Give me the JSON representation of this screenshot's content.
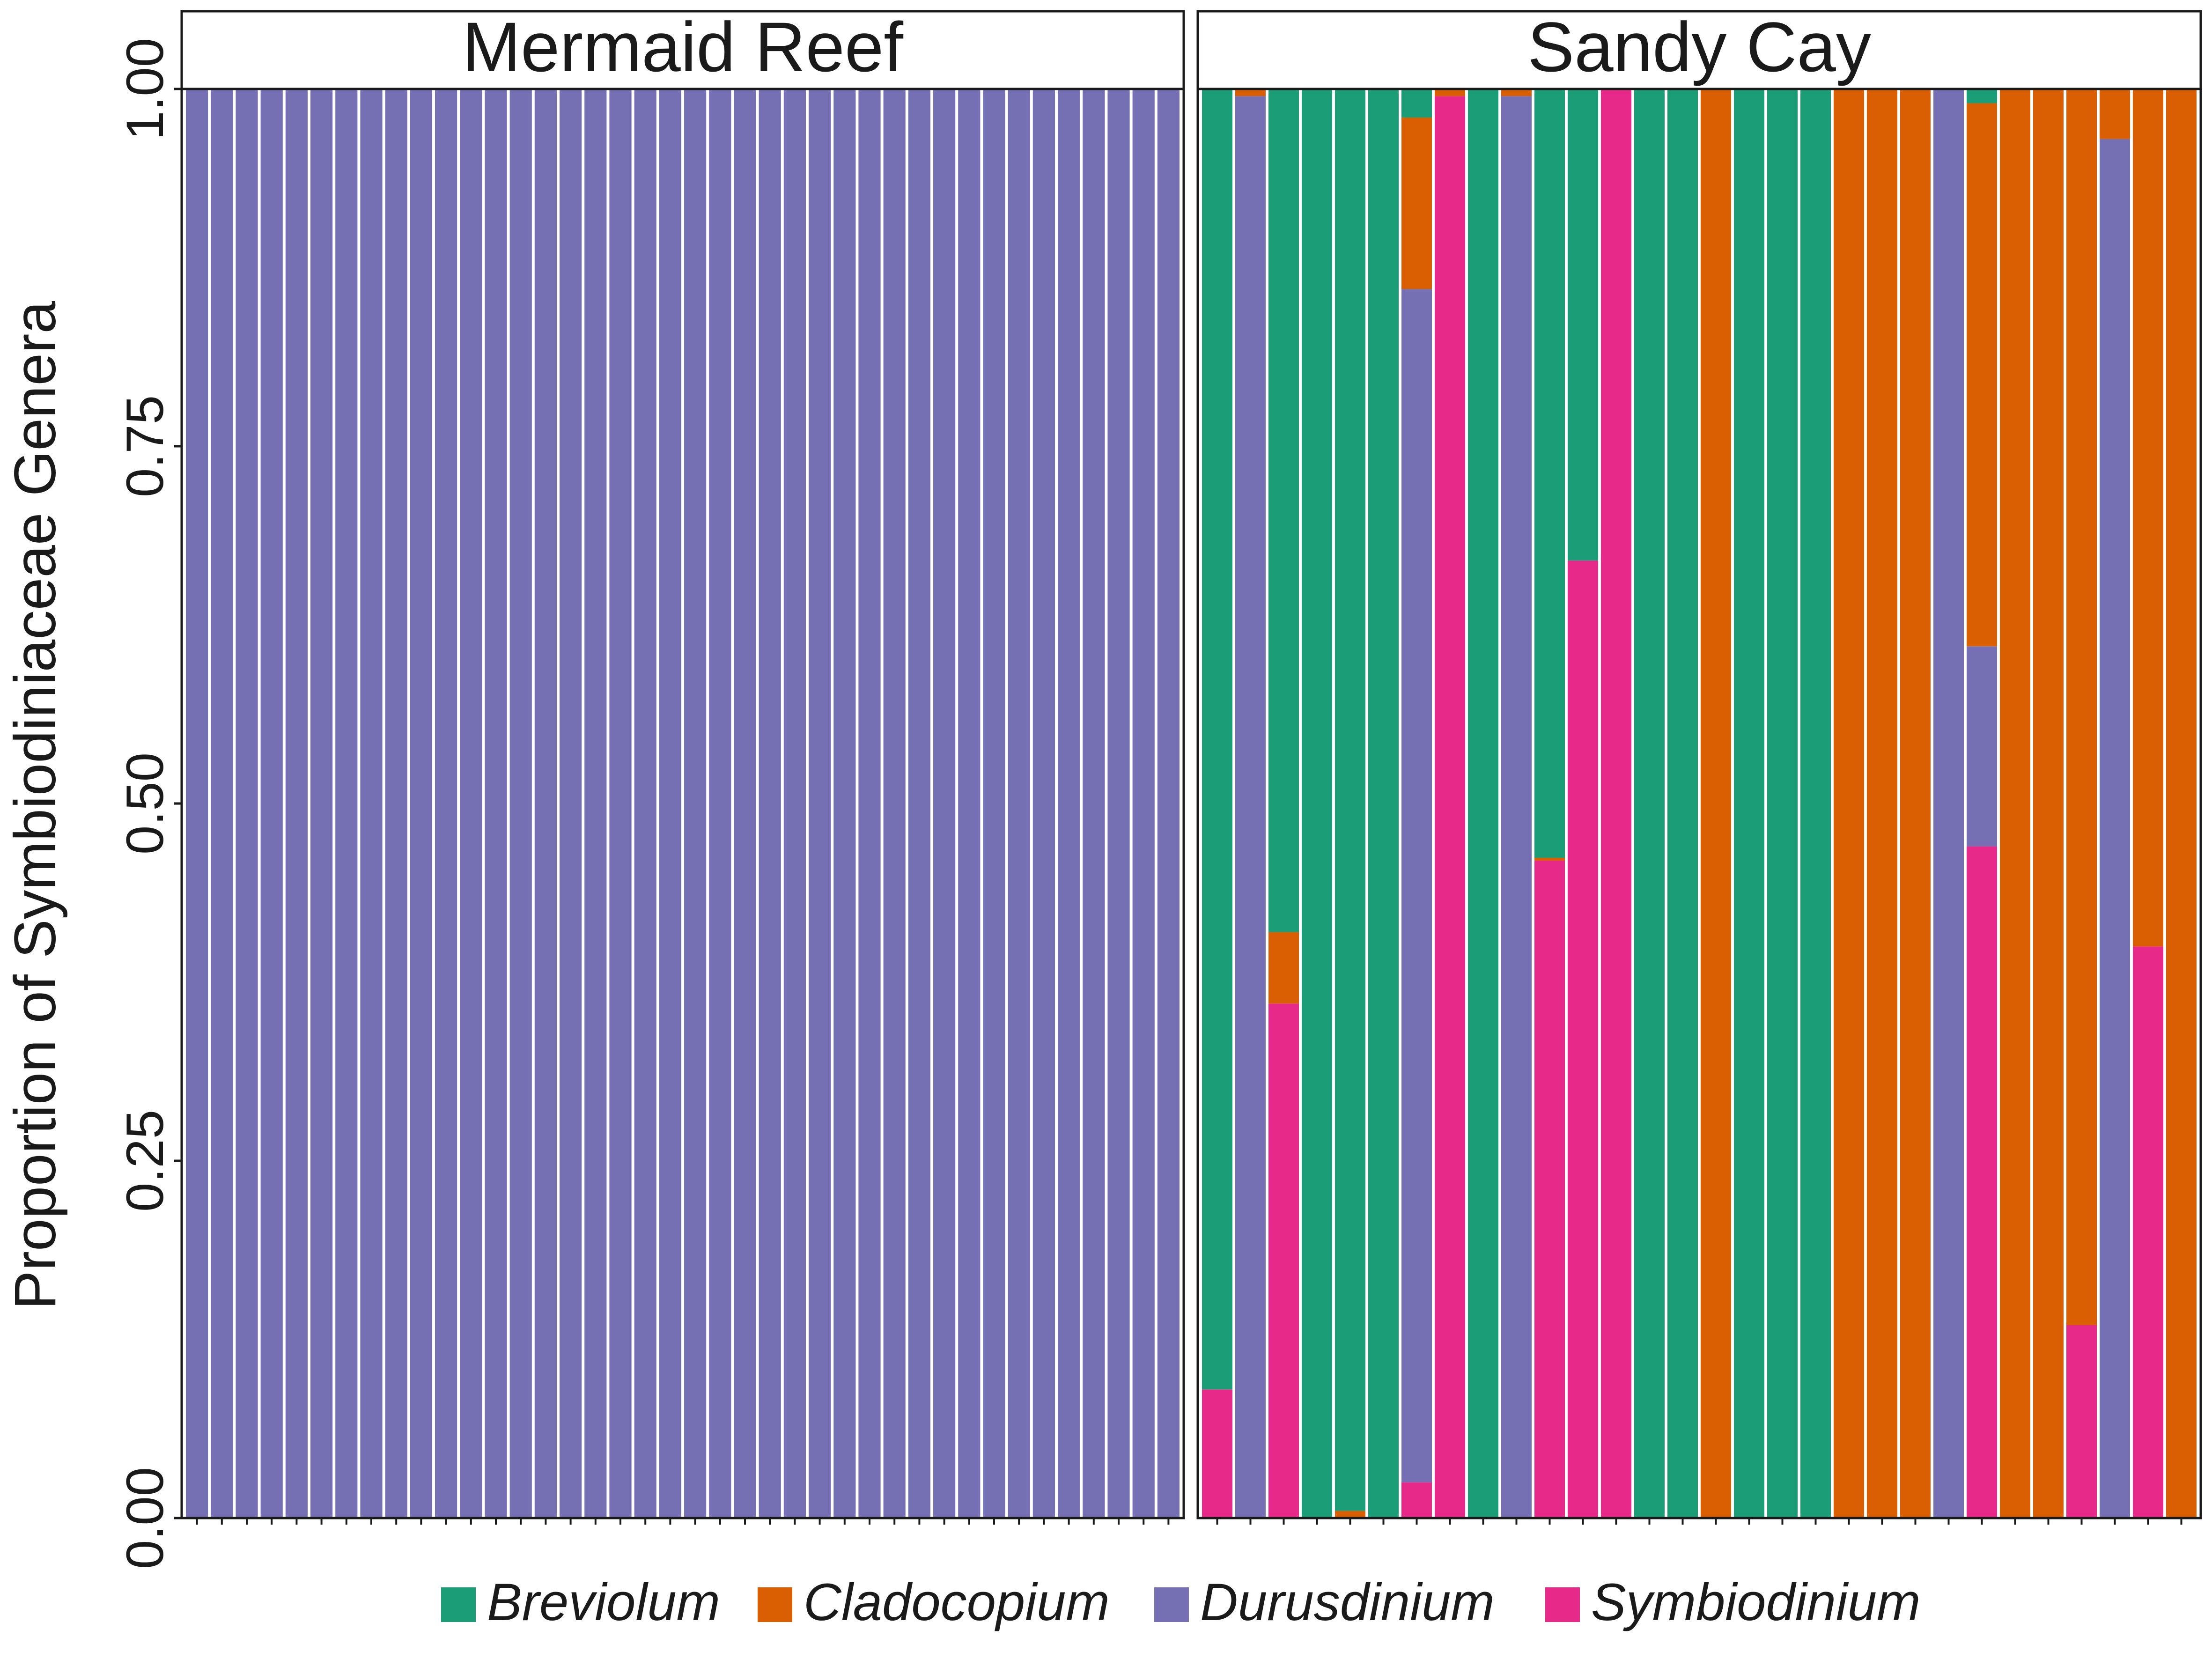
{
  "chart_data": {
    "type": "bar",
    "stacked": true,
    "orientation": "vertical",
    "ylabel": "Proportion of Symbiodiniaceae Genera",
    "xlabel": "",
    "ylim": [
      0,
      1
    ],
    "yticks": [
      "0.00",
      "0.25",
      "0.50",
      "0.75",
      "1.00"
    ],
    "legend": {
      "placement": "bottom",
      "entries": [
        {
          "name": "Breviolum",
          "color": "#1B9E77"
        },
        {
          "name": "Cladocopium",
          "color": "#D95F02"
        },
        {
          "name": "Durusdinium",
          "color": "#7570B3"
        },
        {
          "name": "Symbiodinium",
          "color": "#E7298A"
        }
      ]
    },
    "panels": [
      {
        "title": "Mermaid Reef",
        "samples": [
          {
            "Durusdinium": 1
          },
          {
            "Durusdinium": 1
          },
          {
            "Durusdinium": 1
          },
          {
            "Durusdinium": 1
          },
          {
            "Durusdinium": 1
          },
          {
            "Durusdinium": 1
          },
          {
            "Durusdinium": 1
          },
          {
            "Durusdinium": 1
          },
          {
            "Durusdinium": 1
          },
          {
            "Durusdinium": 1
          },
          {
            "Durusdinium": 1
          },
          {
            "Durusdinium": 1
          },
          {
            "Durusdinium": 1
          },
          {
            "Durusdinium": 1
          },
          {
            "Durusdinium": 1
          },
          {
            "Durusdinium": 1
          },
          {
            "Durusdinium": 1
          },
          {
            "Durusdinium": 1
          },
          {
            "Durusdinium": 1
          },
          {
            "Durusdinium": 1
          },
          {
            "Durusdinium": 1
          },
          {
            "Durusdinium": 1
          },
          {
            "Durusdinium": 1
          },
          {
            "Durusdinium": 1
          },
          {
            "Durusdinium": 1
          },
          {
            "Durusdinium": 1
          },
          {
            "Durusdinium": 1
          },
          {
            "Durusdinium": 1
          },
          {
            "Durusdinium": 1
          },
          {
            "Durusdinium": 1
          },
          {
            "Durusdinium": 1
          },
          {
            "Durusdinium": 1
          },
          {
            "Durusdinium": 1
          },
          {
            "Durusdinium": 1
          },
          {
            "Durusdinium": 1
          },
          {
            "Durusdinium": 1
          },
          {
            "Durusdinium": 1
          },
          {
            "Durusdinium": 1
          },
          {
            "Durusdinium": 1
          },
          {
            "Durusdinium": 1
          }
        ]
      },
      {
        "title": "Sandy Cay",
        "samples": [
          {
            "Symbiodinium": 0.09,
            "Breviolum": 0.91
          },
          {
            "Durusdinium": 0.995,
            "Cladocopium": 0.005
          },
          {
            "Symbiodinium": 0.36,
            "Cladocopium": 0.05,
            "Breviolum": 0.59
          },
          {
            "Breviolum": 1
          },
          {
            "Cladocopium": 0.005,
            "Breviolum": 0.995
          },
          {
            "Breviolum": 1
          },
          {
            "Symbiodinium": 0.025,
            "Durusdinium": 0.835,
            "Cladocopium": 0.12,
            "Breviolum": 0.02
          },
          {
            "Symbiodinium": 0.995,
            "Cladocopium": 0.005
          },
          {
            "Breviolum": 1
          },
          {
            "Durusdinium": 0.995,
            "Cladocopium": 0.005
          },
          {
            "Symbiodinium": 0.46,
            "Cladocopium": 0.002,
            "Breviolum": 0.538
          },
          {
            "Symbiodinium": 0.67,
            "Breviolum": 0.33
          },
          {
            "Symbiodinium": 1
          },
          {
            "Breviolum": 1
          },
          {
            "Breviolum": 1
          },
          {
            "Cladocopium": 1
          },
          {
            "Breviolum": 1
          },
          {
            "Breviolum": 1
          },
          {
            "Breviolum": 1
          },
          {
            "Cladocopium": 1
          },
          {
            "Cladocopium": 1
          },
          {
            "Cladocopium": 1
          },
          {
            "Durusdinium": 1
          },
          {
            "Symbiodinium": 0.47,
            "Durusdinium": 0.14,
            "Cladocopium": 0.38,
            "Breviolum": 0.01
          },
          {
            "Cladocopium": 1
          },
          {
            "Cladocopium": 1
          },
          {
            "Symbiodinium": 0.135,
            "Cladocopium": 0.865
          },
          {
            "Durusdinium": 0.965,
            "Cladocopium": 0.035
          },
          {
            "Symbiodinium": 0.4,
            "Cladocopium": 0.6
          },
          {
            "Cladocopium": 1
          }
        ]
      }
    ]
  }
}
